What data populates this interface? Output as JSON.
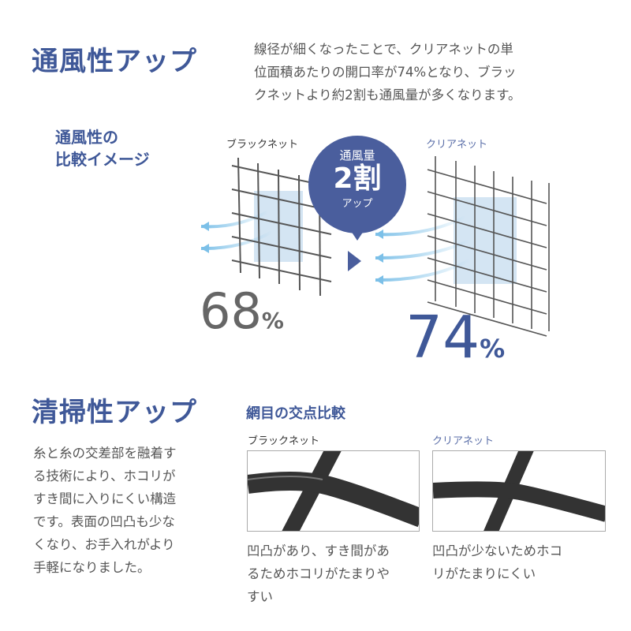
{
  "ventilation": {
    "title": "通風性アップ",
    "description_lines": [
      "線径が細くなったことで、クリアネットの単",
      "位面積あたりの開口率が74%となり、ブラッ",
      "クネットより約2割も通風量が多くなります。"
    ],
    "comparison_heading_lines": [
      "通風性の",
      "比較イメージ"
    ],
    "black_net_label": "ブラックネット",
    "clear_net_label": "クリアネット",
    "bubble": {
      "top": "通風量",
      "main": "2割",
      "bottom": "アップ"
    },
    "black_ratio": "68",
    "clear_ratio": "74",
    "percent": "%"
  },
  "cleaning": {
    "title": "清掃性アップ",
    "description_lines": [
      "糸と糸の交差部を融着す",
      "る技術により、ホコリが",
      "すき間に入りにくい構造",
      "です。表面の凹凸も少な",
      "くなり、お手入れがより",
      "手軽になりました。"
    ],
    "comparison_heading": "網目の交点比較",
    "black_net_label": "ブラックネット",
    "clear_net_label": "クリアネット",
    "black_caption_lines": [
      "凹凸があり、すき間があ",
      "るためホコリがたまりや",
      "すい"
    ],
    "clear_caption_lines": [
      "凹凸が少ないためホコ",
      "リがたまりにくい"
    ]
  },
  "colors": {
    "accent": "#3f5898",
    "bubble": "#4a5e9d",
    "airflow": "#7cc0e8",
    "net": "#555555"
  }
}
